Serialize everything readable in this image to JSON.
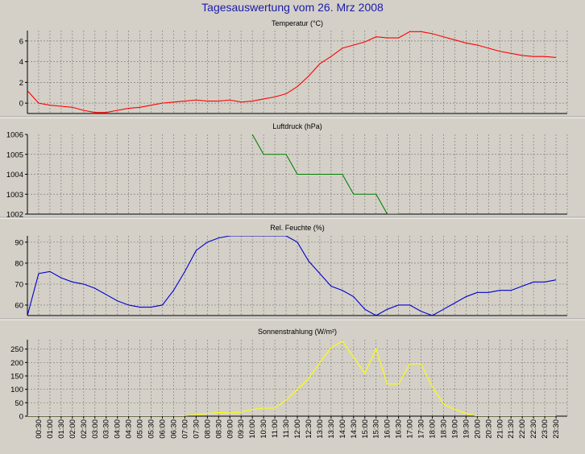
{
  "title": "Tagesauswertung vom 26. Mrz 2008",
  "chart_data": [
    {
      "type": "line",
      "title": "Temperatur (°C)",
      "color": "#ff0000",
      "ylim": [
        -1,
        7
      ],
      "yticks": [
        0,
        2,
        4,
        6
      ],
      "grid": true,
      "x": [
        "00:00",
        "00:30",
        "01:00",
        "01:30",
        "02:00",
        "02:30",
        "03:00",
        "03:30",
        "04:00",
        "04:30",
        "05:00",
        "05:30",
        "06:00",
        "06:30",
        "07:00",
        "07:30",
        "08:00",
        "08:30",
        "09:00",
        "09:30",
        "10:00",
        "10:30",
        "11:00",
        "11:30",
        "12:00",
        "12:30",
        "13:00",
        "13:30",
        "14:00",
        "14:30",
        "15:00",
        "15:30",
        "16:00",
        "16:30",
        "17:00",
        "17:30",
        "18:00",
        "18:30",
        "19:00",
        "19:30",
        "20:00",
        "20:30",
        "21:00",
        "21:30",
        "22:00",
        "22:30",
        "23:00",
        "23:30"
      ],
      "values": [
        1.2,
        0.0,
        -0.2,
        -0.3,
        -0.4,
        -0.7,
        -0.9,
        -0.9,
        -0.7,
        -0.5,
        -0.4,
        -0.2,
        0.0,
        0.1,
        0.2,
        0.3,
        0.2,
        0.2,
        0.3,
        0.1,
        0.2,
        0.4,
        0.6,
        0.9,
        1.6,
        2.6,
        3.8,
        4.5,
        5.3,
        5.6,
        5.9,
        6.4,
        6.3,
        6.3,
        6.9,
        6.9,
        6.7,
        6.4,
        6.1,
        5.8,
        5.6,
        5.3,
        5.0,
        4.8,
        4.6,
        4.5,
        4.5,
        4.4
      ]
    },
    {
      "type": "line",
      "title": "Luftdruck (hPa)",
      "color": "#008000",
      "ylim": [
        1002,
        1006
      ],
      "yticks": [
        1002,
        1003,
        1004,
        1005,
        1006
      ],
      "grid": true,
      "x": [
        "10:00",
        "10:30",
        "11:00",
        "11:30",
        "12:00",
        "12:30",
        "13:00",
        "13:30",
        "14:00",
        "14:30",
        "15:00",
        "15:30",
        "16:00",
        "16:30"
      ],
      "values": [
        1006,
        1005,
        1005,
        1005,
        1004,
        1004,
        1004,
        1004,
        1004,
        1003,
        1003,
        1003,
        1002,
        1002
      ]
    },
    {
      "type": "line",
      "title": "Rel. Feuchte (%)",
      "color": "#0000cc",
      "ylim": [
        55,
        93
      ],
      "yticks": [
        60,
        70,
        80,
        90
      ],
      "grid": true,
      "x": [
        "00:00",
        "00:30",
        "01:00",
        "01:30",
        "02:00",
        "02:30",
        "03:00",
        "03:30",
        "04:00",
        "04:30",
        "05:00",
        "05:30",
        "06:00",
        "06:30",
        "07:00",
        "07:30",
        "08:00",
        "08:30",
        "09:00",
        "09:30",
        "10:00",
        "10:30",
        "11:00",
        "11:30",
        "12:00",
        "12:30",
        "13:00",
        "13:30",
        "14:00",
        "14:30",
        "15:00",
        "15:30",
        "16:00",
        "16:30",
        "17:00",
        "17:30",
        "18:00",
        "18:30",
        "19:00",
        "19:30",
        "20:00",
        "20:30",
        "21:00",
        "21:30",
        "22:00",
        "22:30",
        "23:00",
        "23:30"
      ],
      "values": [
        55,
        75,
        76,
        73,
        71,
        70,
        68,
        65,
        62,
        60,
        59,
        59,
        60,
        67,
        76,
        86,
        90,
        92,
        93,
        93,
        93,
        93,
        93,
        93,
        90,
        81,
        75,
        69,
        67,
        64,
        58,
        55,
        58,
        60,
        60,
        57,
        55,
        58,
        61,
        64,
        66,
        66,
        67,
        67,
        69,
        71,
        71,
        72
      ]
    },
    {
      "type": "line",
      "title": "Sonnenstrahlung (W/m²)",
      "color": "#ffff00",
      "ylim": [
        0,
        285
      ],
      "yticks": [
        0,
        50,
        100,
        150,
        200,
        250
      ],
      "grid": true,
      "x": [
        "00:00",
        "00:30",
        "01:00",
        "01:30",
        "02:00",
        "02:30",
        "03:00",
        "03:30",
        "04:00",
        "04:30",
        "05:00",
        "05:30",
        "06:00",
        "06:30",
        "07:00",
        "07:30",
        "08:00",
        "08:30",
        "09:00",
        "09:30",
        "10:00",
        "10:30",
        "11:00",
        "11:30",
        "12:00",
        "12:30",
        "13:00",
        "13:30",
        "14:00",
        "14:30",
        "15:00",
        "15:30",
        "16:00",
        "16:30",
        "17:00",
        "17:30",
        "18:00",
        "18:30",
        "19:00",
        "19:30",
        "20:00",
        "20:30",
        "21:00",
        "21:30",
        "22:00",
        "22:30",
        "23:00",
        "23:30"
      ],
      "values": [
        0,
        0,
        0,
        0,
        0,
        0,
        0,
        0,
        0,
        0,
        0,
        0,
        0,
        0,
        2,
        5,
        10,
        14,
        12,
        15,
        25,
        30,
        30,
        60,
        100,
        140,
        200,
        255,
        280,
        220,
        160,
        250,
        120,
        120,
        195,
        195,
        110,
        45,
        25,
        10,
        0,
        0,
        0,
        0,
        0,
        0,
        0,
        0
      ]
    }
  ],
  "x_axis": {
    "labels": [
      "00:30",
      "01:00",
      "01:30",
      "02:00",
      "02:30",
      "03:00",
      "03:30",
      "04:00",
      "04:30",
      "05:00",
      "05:30",
      "06:00",
      "06:30",
      "07:00",
      "07:30",
      "08:00",
      "08:30",
      "09:00",
      "09:30",
      "10:00",
      "10:30",
      "11:00",
      "11:30",
      "12:00",
      "12:30",
      "13:00",
      "13:30",
      "14:00",
      "14:30",
      "15:00",
      "15:30",
      "16:00",
      "16:30",
      "17:00",
      "17:30",
      "18:00",
      "18:30",
      "19:00",
      "19:30",
      "20:00",
      "20:30",
      "21:00",
      "21:30",
      "22:00",
      "22:30",
      "23:00",
      "23:30"
    ]
  }
}
